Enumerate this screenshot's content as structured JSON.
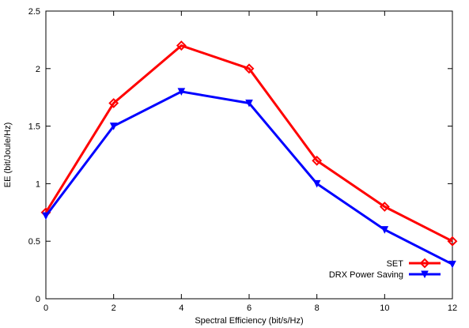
{
  "chart_data": {
    "type": "line",
    "title": "",
    "xlabel": "Spectral Efficiency (bit/s/Hz)",
    "ylabel": "EE (bit/Joule/Hz)",
    "xlim": [
      0,
      12
    ],
    "ylim": [
      0,
      2.5
    ],
    "xticks": [
      0,
      2,
      4,
      6,
      8,
      10,
      12
    ],
    "yticks": [
      0,
      0.5,
      1,
      1.5,
      2,
      2.5
    ],
    "xtick_labels": [
      "0",
      "2",
      "4",
      "6",
      "8",
      "10",
      "12"
    ],
    "ytick_labels": [
      "0",
      "0.5",
      "1",
      "1.5",
      "2",
      "2.5"
    ],
    "grid": false,
    "legend_position": "bottom-right",
    "series": [
      {
        "name": "SET",
        "color": "#ff0000",
        "marker": "diamond",
        "x": [
          0,
          2,
          4,
          6,
          8,
          10,
          12
        ],
        "y": [
          0.75,
          1.7,
          2.2,
          2.0,
          1.2,
          0.8,
          0.5
        ]
      },
      {
        "name": "DRX Power Saving",
        "color": "#0000ff",
        "marker": "triangle-down",
        "x": [
          0,
          2,
          4,
          6,
          8,
          10,
          12
        ],
        "y": [
          0.72,
          1.5,
          1.8,
          1.7,
          1.0,
          0.6,
          0.3
        ]
      }
    ]
  }
}
